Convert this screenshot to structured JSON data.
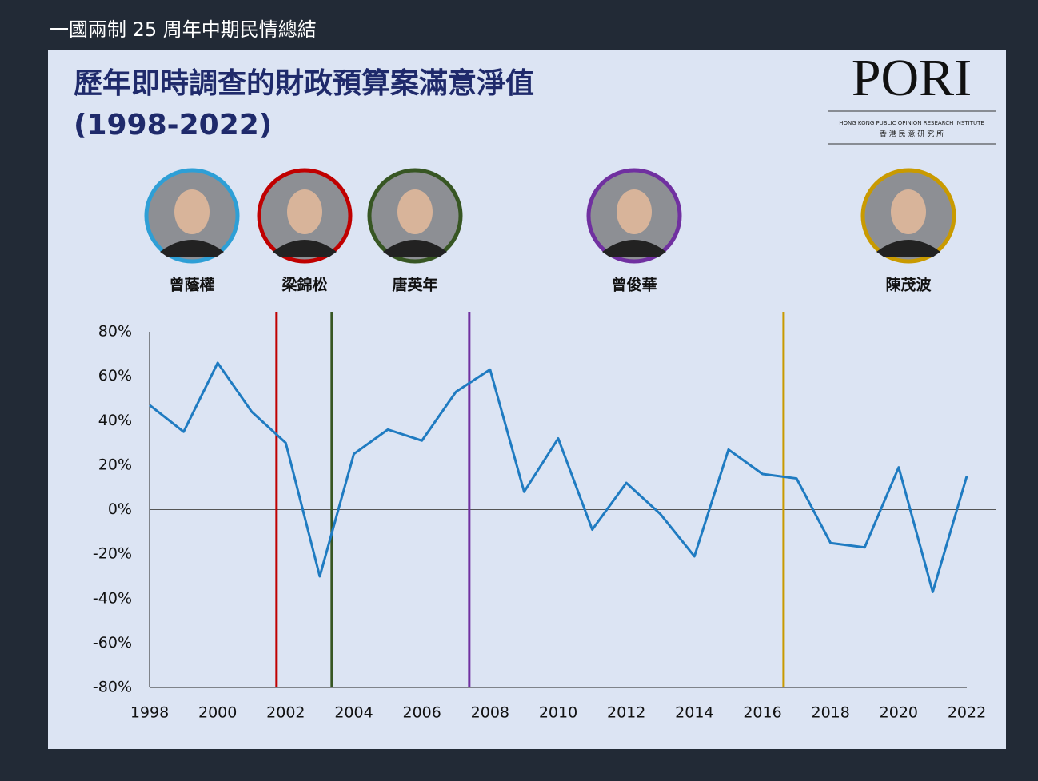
{
  "header": "一國兩制 25 周年中期民情總結",
  "logo": {
    "name": "PORI",
    "english": "HONG KONG PUBLIC OPINION RESEARCH INSTITUTE",
    "chinese": "香 港 民 意 研 究 所"
  },
  "chart_data": {
    "type": "line",
    "title_lines": [
      "歷年即時調查的財政預算案滿意淨值",
      "(1998-2022)"
    ],
    "x": [
      1998,
      1999,
      2000,
      2001,
      2002,
      2003,
      2004,
      2005,
      2006,
      2007,
      2008,
      2009,
      2010,
      2011,
      2012,
      2013,
      2014,
      2015,
      2016,
      2017,
      2018,
      2019,
      2020,
      2021,
      2022
    ],
    "series": [
      {
        "color": "#1f7bc1",
        "values": [
          47,
          35,
          66,
          44,
          30,
          -30,
          25,
          36,
          31,
          53,
          63,
          8,
          32,
          -9,
          12,
          -2,
          -21,
          27,
          16,
          14,
          -15,
          -17,
          19,
          -37,
          15
        ]
      }
    ],
    "xlim": [
      1998,
      2022
    ],
    "xticks": [
      1998,
      2000,
      2002,
      2004,
      2006,
      2008,
      2010,
      2012,
      2014,
      2016,
      2018,
      2020,
      2022
    ],
    "ylim": [
      -80,
      80
    ],
    "yticks": [
      {
        "value": 80,
        "label": "80%"
      },
      {
        "value": 60,
        "label": "60%"
      },
      {
        "value": 40,
        "label": "40%"
      },
      {
        "value": 20,
        "label": "20%"
      },
      {
        "value": 0,
        "label": "0%"
      },
      {
        "value": -20,
        "label": "-20%"
      },
      {
        "value": -40,
        "label": "-40%"
      },
      {
        "value": -60,
        "label": "-60%"
      },
      {
        "value": -80,
        "label": "-80%"
      }
    ],
    "officials": [
      {
        "name": "曾蔭權",
        "color": "#2e9fd6"
      },
      {
        "name": "梁錦松",
        "color": "#c00000",
        "start": 2001.73
      },
      {
        "name": "唐英年",
        "color": "#375623",
        "start": 2003.35
      },
      {
        "name": "曾俊華",
        "color": "#7030a0",
        "start": 2007.39
      },
      {
        "name": "陳茂波",
        "color": "#c99a00",
        "start": 2016.62
      }
    ]
  }
}
